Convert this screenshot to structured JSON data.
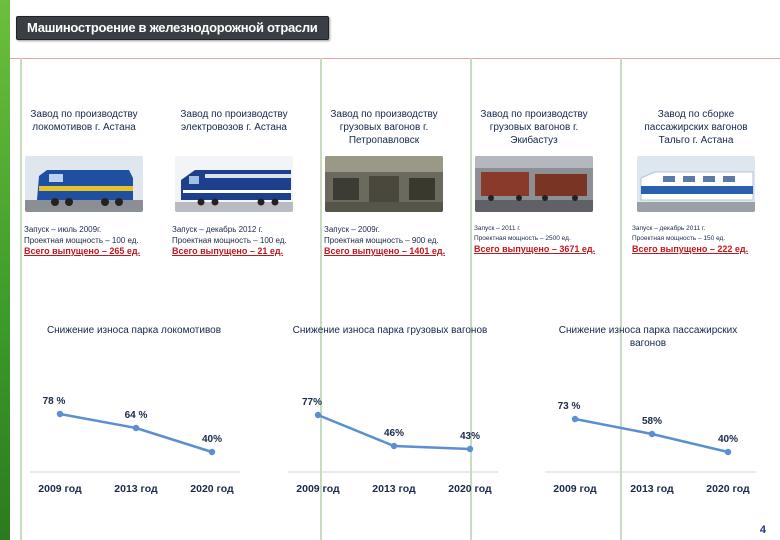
{
  "slide": {
    "title": "Машиностроение в железнодорожной отрасли",
    "page_number": "4",
    "accent_green": "#4aab30",
    "total_color": "#c2181f",
    "line_color": "#5b8fd2"
  },
  "plants": [
    {
      "title": "Завод по производству локомотивов г. Астана",
      "launch": "Запуск – июль 2009г.",
      "capacity": "Проектная мощность – 100 ед.",
      "total": "Всего выпущено – 265 ед."
    },
    {
      "title": "Завод по производству электровозов г. Астана",
      "launch": "Запуск – декабрь 2012 г.",
      "capacity": "Проектная мощность – 100 ед.",
      "total": "Всего выпущено – 21 ед."
    },
    {
      "title": "Завод по производству грузовых вагонов г. Петропавловск",
      "launch": "Запуск – 2009г.",
      "capacity": "Проектная мощность – 900 ед.",
      "total": "Всего выпущено – 1401 ед."
    },
    {
      "title": "Завод по производству грузовых вагонов г. Экибастуз",
      "launch": "Запуск – 2011 г.",
      "capacity": "Проектная мощность – 2500 ед.",
      "total": "Всего выпущено – 3671 ед."
    },
    {
      "title": "Завод по сборке пассажирских вагонов Тальго г. Астана",
      "launch": "Запуск – декабрь 2011 г.",
      "capacity": "Проектная мощность – 150 ед.",
      "total": "Всего выпущено – 222 ед."
    }
  ],
  "chart_data": [
    {
      "type": "line",
      "title": "Снижение износа парка локомотивов",
      "categories": [
        "2009 год",
        "2013 год",
        "2020 год"
      ],
      "values": [
        78,
        64,
        40
      ],
      "value_labels": [
        "78 %",
        "64 %",
        "40%"
      ],
      "ylim": [
        0,
        100
      ],
      "grid": false
    },
    {
      "type": "line",
      "title": "Снижение износа парка грузовых вагонов",
      "categories": [
        "2009 год",
        "2013 год",
        "2020 год"
      ],
      "values": [
        77,
        46,
        43
      ],
      "value_labels": [
        "77%",
        "46%",
        "43%"
      ],
      "ylim": [
        0,
        100
      ],
      "grid": false
    },
    {
      "type": "line",
      "title": "Снижение износа парка пассажирских вагонов",
      "categories": [
        "2009 год",
        "2013 год",
        "2020 год"
      ],
      "values": [
        73,
        58,
        40
      ],
      "value_labels": [
        "73 %",
        "58%",
        "40%"
      ],
      "ylim": [
        0,
        100
      ],
      "grid": false
    }
  ]
}
